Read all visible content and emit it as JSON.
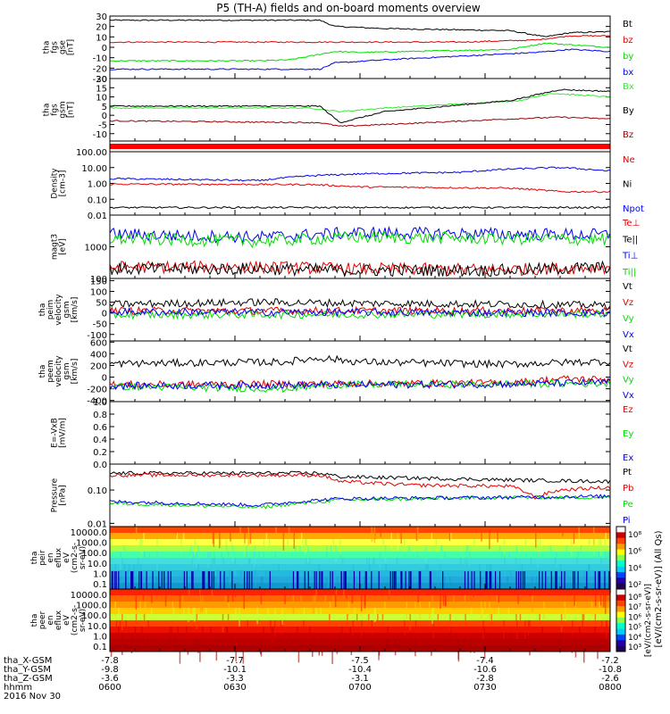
{
  "title": "P5 (TH-A) fields and on-board moments overview",
  "colors": {
    "black": "#000000",
    "red": "#e00000",
    "green": "#00dd00",
    "blue": "#0000ee",
    "darkred": "#990000",
    "brightgreen": "#33ee33"
  },
  "chart_data": [
    {
      "type": "line",
      "id": "fgs_gse",
      "ylabel": [
        "tha",
        "fgs",
        "gse",
        "[nT]"
      ],
      "yticks": [
        "30",
        "20",
        "10",
        "0",
        "-10",
        "-20",
        "-30"
      ],
      "ylim": [
        -30,
        30
      ],
      "log": false,
      "series": [
        {
          "name": "Bt",
          "color": "black",
          "base": 26,
          "noise": 1,
          "profile": [
            [
              0,
              26
            ],
            [
              0.42,
              26
            ],
            [
              0.45,
              20
            ],
            [
              0.55,
              18
            ],
            [
              0.8,
              16
            ],
            [
              0.87,
              10
            ],
            [
              0.92,
              14
            ],
            [
              1,
              15
            ]
          ]
        },
        {
          "name": "bz",
          "color": "red",
          "base": 5,
          "noise": 0.5,
          "profile": [
            [
              0,
              5
            ],
            [
              0.7,
              5
            ],
            [
              0.85,
              7
            ],
            [
              0.92,
              11
            ],
            [
              1,
              11
            ]
          ]
        },
        {
          "name": "by",
          "color": "green",
          "base": -13,
          "noise": 1,
          "profile": [
            [
              0,
              -13
            ],
            [
              0.3,
              -13
            ],
            [
              0.36,
              -12
            ],
            [
              0.45,
              -4
            ],
            [
              0.5,
              -5
            ],
            [
              0.8,
              -2
            ],
            [
              0.87,
              4
            ],
            [
              1,
              0
            ]
          ]
        },
        {
          "name": "bx",
          "color": "blue",
          "base": -20,
          "noise": 0.8,
          "profile": [
            [
              0,
              -21
            ],
            [
              0.42,
              -21
            ],
            [
              0.45,
              -15
            ],
            [
              0.55,
              -12
            ],
            [
              0.85,
              -5
            ],
            [
              0.92,
              -2
            ],
            [
              1,
              -4
            ]
          ]
        }
      ]
    },
    {
      "type": "line",
      "id": "fgs_gsm",
      "ylabel": [
        "tha",
        "fgs",
        "gsm",
        "[nT]"
      ],
      "yticks": [
        "20",
        "15",
        "10",
        "5",
        "0",
        "-5",
        "-10"
      ],
      "ylim": [
        -14,
        20
      ],
      "log": false,
      "series": [
        {
          "name": "Bx",
          "color": "brightgreen",
          "profile": [
            [
              0,
              4
            ],
            [
              0.4,
              4
            ],
            [
              0.46,
              2
            ],
            [
              0.55,
              4
            ],
            [
              0.82,
              8
            ],
            [
              0.88,
              12
            ],
            [
              1,
              10
            ]
          ]
        },
        {
          "name": "By",
          "color": "black",
          "profile": [
            [
              0,
              5
            ],
            [
              0.42,
              5
            ],
            [
              0.46,
              -4
            ],
            [
              0.55,
              2
            ],
            [
              0.8,
              8
            ],
            [
              0.9,
              14
            ],
            [
              1,
              13
            ]
          ]
        },
        {
          "name": "Bz",
          "color": "darkred",
          "profile": [
            [
              0,
              -3
            ],
            [
              0.42,
              -4
            ],
            [
              0.46,
              -6
            ],
            [
              0.55,
              -5
            ],
            [
              0.8,
              -2
            ],
            [
              0.9,
              -1
            ],
            [
              1,
              -2
            ]
          ]
        }
      ]
    },
    {
      "type": "line",
      "id": "density",
      "ylabel": [
        "Density",
        "[cm-3]"
      ],
      "yticks": [
        "100.00",
        "10.00",
        "1.00",
        "0.10",
        "0.01"
      ],
      "ylim": [
        0.01,
        100
      ],
      "log": true,
      "series": [
        {
          "name": "Ne",
          "color": "red",
          "profile": [
            [
              0,
              0.9
            ],
            [
              0.4,
              0.85
            ],
            [
              0.5,
              0.6
            ],
            [
              0.8,
              0.5
            ],
            [
              0.9,
              0.3
            ],
            [
              1,
              0.3
            ]
          ]
        },
        {
          "name": "Ni",
          "color": "black",
          "profile": [
            [
              0,
              0.03
            ],
            [
              1,
              0.03
            ]
          ]
        },
        {
          "name": "Npot",
          "color": "blue",
          "profile": [
            [
              0,
              2
            ],
            [
              0.3,
              1.5
            ],
            [
              0.4,
              3
            ],
            [
              0.5,
              4
            ],
            [
              0.7,
              5
            ],
            [
              0.8,
              8
            ],
            [
              0.9,
              10
            ],
            [
              1,
              6
            ]
          ]
        }
      ]
    },
    {
      "type": "line",
      "id": "temperature",
      "ylabel": [
        "magt3",
        "[eV]"
      ],
      "yticks": [
        "1000",
        "100"
      ],
      "ylim": [
        100,
        10000
      ],
      "log": true,
      "series": [
        {
          "name": "Te⊥",
          "color": "red",
          "profile": [
            [
              0,
              230
            ],
            [
              0.3,
              230
            ],
            [
              0.5,
              200
            ],
            [
              0.8,
              190
            ],
            [
              1,
              230
            ]
          ]
        },
        {
          "name": "Te||",
          "color": "black",
          "profile": [
            [
              0,
              200
            ],
            [
              0.3,
              200
            ],
            [
              0.5,
              180
            ],
            [
              0.8,
              180
            ],
            [
              1,
              230
            ]
          ]
        },
        {
          "name": "Ti⊥",
          "color": "blue",
          "profile": [
            [
              0,
              2500
            ],
            [
              0.3,
              2000
            ],
            [
              0.5,
              2800
            ],
            [
              0.8,
              2500
            ],
            [
              1,
              2400
            ]
          ]
        },
        {
          "name": "Ti||",
          "color": "green",
          "profile": [
            [
              0,
              1800
            ],
            [
              0.3,
              1500
            ],
            [
              0.5,
              2000
            ],
            [
              0.8,
              1800
            ],
            [
              1,
              1700
            ]
          ]
        }
      ]
    },
    {
      "type": "line",
      "id": "peim_velocity",
      "ylabel": [
        "tha",
        "peim",
        "velocity",
        "gsm",
        "[km/s]"
      ],
      "yticks": [
        "150",
        "100",
        "50",
        "0",
        "-50",
        "-100"
      ],
      "ylim": [
        -130,
        160
      ],
      "log": false,
      "series": [
        {
          "name": "Vt",
          "color": "black",
          "profile": [
            [
              0,
              40
            ],
            [
              0.3,
              50
            ],
            [
              0.5,
              45
            ],
            [
              0.8,
              40
            ],
            [
              1,
              35
            ]
          ]
        },
        {
          "name": "Vz",
          "color": "red",
          "profile": [
            [
              0,
              10
            ],
            [
              1,
              10
            ]
          ]
        },
        {
          "name": "Vy",
          "color": "green",
          "profile": [
            [
              0,
              -10
            ],
            [
              1,
              -5
            ]
          ]
        },
        {
          "name": "Vx",
          "color": "blue",
          "profile": [
            [
              0,
              5
            ],
            [
              1,
              0
            ]
          ]
        }
      ]
    },
    {
      "type": "line",
      "id": "peem_velocity",
      "ylabel": [
        "tha",
        "peem",
        "velocity",
        "gsm",
        "[km/s]"
      ],
      "yticks": [
        "600",
        "400",
        "200",
        "0",
        "-200",
        "-400"
      ],
      "ylim": [
        -420,
        620
      ],
      "log": false,
      "series": [
        {
          "name": "Vt",
          "color": "black",
          "profile": [
            [
              0,
              230
            ],
            [
              0.35,
              260
            ],
            [
              0.42,
              330
            ],
            [
              0.5,
              260
            ],
            [
              0.8,
              220
            ],
            [
              0.9,
              250
            ],
            [
              1,
              270
            ]
          ]
        },
        {
          "name": "Vz",
          "color": "red",
          "profile": [
            [
              0,
              -130
            ],
            [
              0.8,
              -100
            ],
            [
              0.9,
              -30
            ],
            [
              1,
              -40
            ]
          ]
        },
        {
          "name": "Vy",
          "color": "green",
          "profile": [
            [
              0,
              -160
            ],
            [
              0.35,
              -200
            ],
            [
              0.45,
              -130
            ],
            [
              1,
              -110
            ]
          ]
        },
        {
          "name": "Vx",
          "color": "blue",
          "profile": [
            [
              0,
              -150
            ],
            [
              0.8,
              -120
            ],
            [
              1,
              -90
            ]
          ]
        }
      ]
    },
    {
      "type": "line",
      "id": "efield",
      "ylabel": [
        "E=-VxB",
        "[mV/m]"
      ],
      "yticks": [
        "1.0",
        "0.8",
        "0.6",
        "0.4",
        "0.2",
        "0.0"
      ],
      "ylim": [
        0,
        1
      ],
      "log": false,
      "series": [
        {
          "name": "Ez",
          "color": "red"
        },
        {
          "name": "Ey",
          "color": "green"
        },
        {
          "name": "Ex",
          "color": "blue"
        }
      ]
    },
    {
      "type": "line",
      "id": "pressure",
      "ylabel": [
        "Pressure",
        "[nPa]"
      ],
      "yticks": [
        "0.10",
        "0.01"
      ],
      "ylim": [
        0.008,
        0.6
      ],
      "log": true,
      "series": [
        {
          "name": "Pt",
          "color": "black",
          "profile": [
            [
              0,
              0.32
            ],
            [
              0.42,
              0.32
            ],
            [
              0.46,
              0.25
            ],
            [
              0.8,
              0.2
            ],
            [
              1,
              0.18
            ]
          ]
        },
        {
          "name": "Pb",
          "color": "red",
          "profile": [
            [
              0,
              0.28
            ],
            [
              0.42,
              0.28
            ],
            [
              0.46,
              0.18
            ],
            [
              0.6,
              0.14
            ],
            [
              0.8,
              0.13
            ],
            [
              0.85,
              0.06
            ],
            [
              0.9,
              0.1
            ],
            [
              1,
              0.12
            ]
          ]
        },
        {
          "name": "Pe",
          "color": "green",
          "profile": [
            [
              0,
              0.04
            ],
            [
              0.3,
              0.03
            ],
            [
              0.46,
              0.05
            ],
            [
              0.8,
              0.06
            ],
            [
              1,
              0.06
            ]
          ]
        },
        {
          "name": "Pi",
          "color": "blue",
          "profile": [
            [
              0,
              0.045
            ],
            [
              0.3,
              0.035
            ],
            [
              0.46,
              0.055
            ],
            [
              0.8,
              0.06
            ],
            [
              1,
              0.065
            ]
          ]
        }
      ]
    },
    {
      "type": "heatmap",
      "id": "peir_spec",
      "ylabel": [
        "tha",
        "peir",
        "en",
        "eflux",
        "eV",
        "(cm2-s-",
        "sr-eV)"
      ],
      "yticks": [
        "10000.0",
        "1000.0",
        "100.0",
        "10.0",
        "1.0",
        "0.1"
      ],
      "colorbar_ticks": [
        "10⁸",
        "10⁶",
        "10⁴",
        "10²"
      ],
      "colorbar_label": "[eV/(cm2-s-sr-eV)] (All Qs)"
    },
    {
      "type": "heatmap",
      "id": "peer_spec",
      "ylabel": [
        "tha",
        "peer",
        "en",
        "eflux",
        "eV",
        "(cm2-s-",
        "sr-eV)"
      ],
      "yticks": [
        "10000.0",
        "1000.0",
        "100.0",
        "10.0",
        "1.0",
        "0.1"
      ],
      "colorbar_ticks": [
        "10⁸",
        "10⁷",
        "10⁶",
        "10⁵",
        "10⁴",
        "10³"
      ],
      "colorbar_label": "[eV/(cm2-s-sr-eV)]"
    }
  ],
  "xaxis": {
    "rows": [
      {
        "label": "tha_X-GSM",
        "values": [
          "-7.8",
          "-7.7",
          "-7.5",
          "-7.4",
          "-7.2"
        ]
      },
      {
        "label": "tha_Y-GSM",
        "values": [
          "-9.8",
          "-10.1",
          "-10.4",
          "-10.6",
          "-10.8"
        ]
      },
      {
        "label": "tha_Z-GSM",
        "values": [
          "-3.6",
          "-3.3",
          "-3.1",
          "-2.8",
          "-2.6"
        ]
      },
      {
        "label": "hhmm",
        "values": [
          "0600",
          "0630",
          "0700",
          "0730",
          "0800"
        ]
      }
    ],
    "date": "2016 Nov 30"
  }
}
